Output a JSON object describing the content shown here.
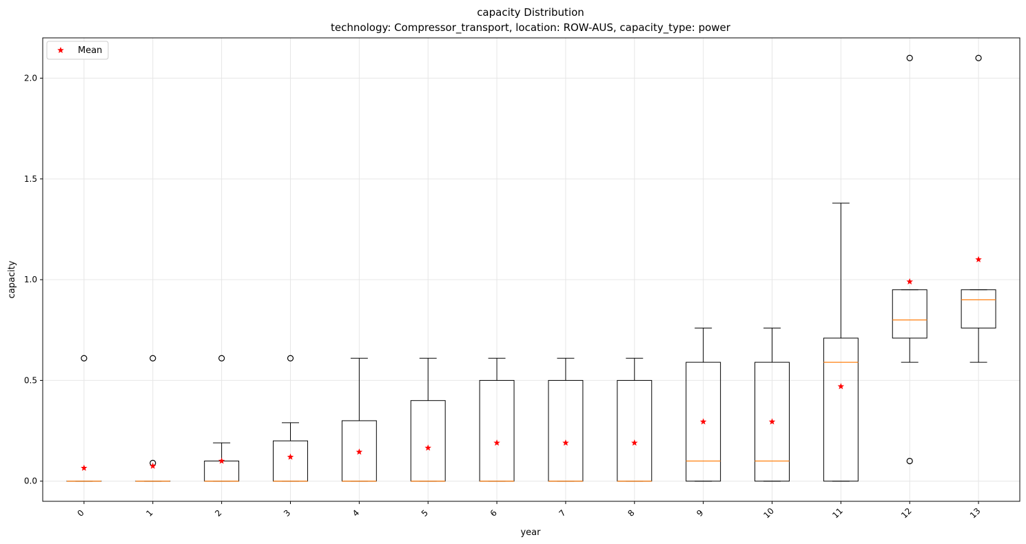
{
  "chart_data": {
    "type": "boxplot",
    "title": "capacity Distribution",
    "subtitle": "technology: Compressor_transport, location: ROW-AUS, capacity_type: power",
    "xlabel": "year",
    "ylabel": "capacity",
    "categories": [
      "0",
      "1",
      "2",
      "3",
      "4",
      "5",
      "6",
      "7",
      "8",
      "9",
      "10",
      "11",
      "12",
      "13"
    ],
    "ylim": [
      -0.1,
      2.2
    ],
    "yticks": [
      0.0,
      0.5,
      1.0,
      1.5,
      2.0
    ],
    "ytick_labels": [
      "0.0",
      "0.5",
      "1.0",
      "1.5",
      "2.0"
    ],
    "grid": true,
    "legend": {
      "position": "top-left",
      "entries": [
        "Mean"
      ]
    },
    "colors": {
      "box": "#000000",
      "median": "#ff7f0e",
      "mean": "#ff0000",
      "grid": "#e6e6e6"
    },
    "boxes": [
      {
        "q1": 0.0,
        "median": 0.0,
        "q3": 0.0,
        "whislo": 0.0,
        "whishi": 0.0,
        "mean": 0.065,
        "fliers": [
          0.61
        ]
      },
      {
        "q1": 0.0,
        "median": 0.0,
        "q3": 0.0,
        "whislo": 0.0,
        "whishi": 0.0,
        "mean": 0.075,
        "fliers": [
          0.09,
          0.61
        ]
      },
      {
        "q1": 0.0,
        "median": 0.0,
        "q3": 0.1,
        "whislo": 0.0,
        "whishi": 0.19,
        "mean": 0.1,
        "fliers": [
          0.61
        ]
      },
      {
        "q1": 0.0,
        "median": 0.0,
        "q3": 0.2,
        "whislo": 0.0,
        "whishi": 0.29,
        "mean": 0.12,
        "fliers": [
          0.61
        ]
      },
      {
        "q1": 0.0,
        "median": 0.0,
        "q3": 0.3,
        "whislo": 0.0,
        "whishi": 0.61,
        "mean": 0.145,
        "fliers": []
      },
      {
        "q1": 0.0,
        "median": 0.0,
        "q3": 0.4,
        "whislo": 0.0,
        "whishi": 0.61,
        "mean": 0.165,
        "fliers": []
      },
      {
        "q1": 0.0,
        "median": 0.0,
        "q3": 0.5,
        "whislo": 0.0,
        "whishi": 0.61,
        "mean": 0.19,
        "fliers": []
      },
      {
        "q1": 0.0,
        "median": 0.0,
        "q3": 0.5,
        "whislo": 0.0,
        "whishi": 0.61,
        "mean": 0.19,
        "fliers": []
      },
      {
        "q1": 0.0,
        "median": 0.0,
        "q3": 0.5,
        "whislo": 0.0,
        "whishi": 0.61,
        "mean": 0.19,
        "fliers": []
      },
      {
        "q1": 0.0,
        "median": 0.1,
        "q3": 0.59,
        "whislo": 0.0,
        "whishi": 0.76,
        "mean": 0.295,
        "fliers": []
      },
      {
        "q1": 0.0,
        "median": 0.1,
        "q3": 0.59,
        "whislo": 0.0,
        "whishi": 0.76,
        "mean": 0.295,
        "fliers": []
      },
      {
        "q1": 0.0,
        "median": 0.59,
        "q3": 0.71,
        "whislo": 0.0,
        "whishi": 1.38,
        "mean": 0.47,
        "fliers": []
      },
      {
        "q1": 0.71,
        "median": 0.8,
        "q3": 0.95,
        "whislo": 0.59,
        "whishi": 0.95,
        "mean": 0.99,
        "fliers": [
          0.1,
          2.1
        ]
      },
      {
        "q1": 0.76,
        "median": 0.9,
        "q3": 0.95,
        "whislo": 0.59,
        "whishi": 0.95,
        "mean": 1.1,
        "fliers": [
          2.1
        ]
      }
    ]
  }
}
